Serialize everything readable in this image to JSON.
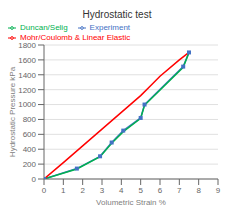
{
  "chart_data": {
    "type": "line",
    "title": "Hydrostatic test",
    "xlabel": "Volumetric Strain %",
    "ylabel": "Hydrostatic Pressure kPa",
    "xlim": [
      0,
      9
    ],
    "ylim": [
      0,
      1800
    ],
    "xticks": [
      0,
      1,
      2,
      3,
      4,
      5,
      6,
      7,
      8,
      9
    ],
    "yticks": [
      0,
      200,
      400,
      600,
      800,
      1000,
      1200,
      1400,
      1600,
      1800
    ],
    "grid": true,
    "legend": "upper left",
    "series": [
      {
        "name": "Experiment",
        "color": "#4472c4",
        "marker": "square",
        "x": [
          0,
          1.7,
          2.9,
          3.5,
          4.1,
          5.0,
          5.2,
          7.2,
          7.5
        ],
        "values": [
          0,
          140,
          305,
          490,
          650,
          820,
          1000,
          1510,
          1700
        ]
      },
      {
        "name": "Duncan/Selig",
        "color": "#00b050",
        "x": [
          0,
          1.7,
          2.9,
          3.5,
          4.1,
          5.0,
          5.2,
          7.2,
          7.5
        ],
        "values": [
          0,
          135,
          300,
          480,
          635,
          815,
          990,
          1500,
          1700
        ]
      },
      {
        "name": "Mohr/Coulomb & Linear Elastic",
        "color": "#ff0000",
        "x": [
          0,
          1.0,
          2.0,
          3.0,
          4.0,
          5.0,
          5.5,
          6.0,
          7.0,
          7.5
        ],
        "values": [
          0,
          220,
          445,
          670,
          895,
          1120,
          1250,
          1380,
          1600,
          1700
        ]
      }
    ]
  }
}
